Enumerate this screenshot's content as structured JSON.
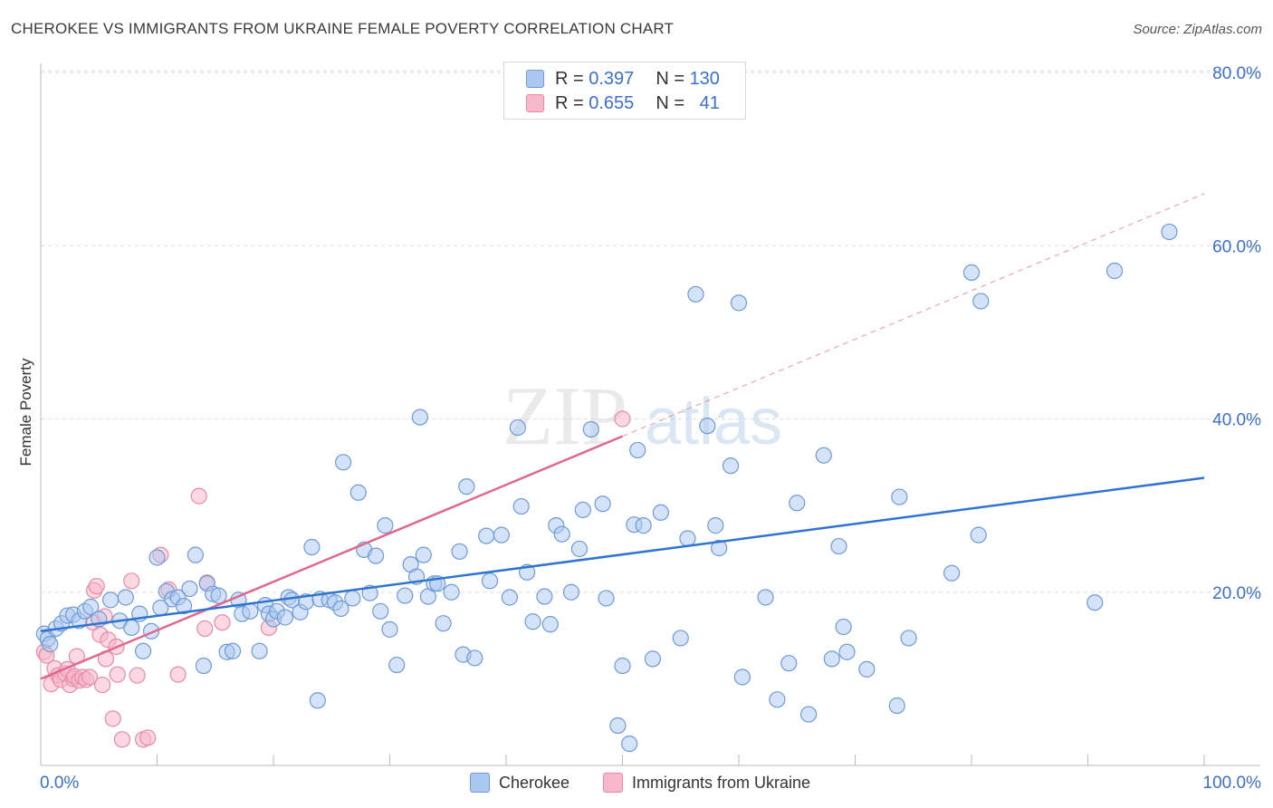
{
  "title": "CHEROKEE VS IMMIGRANTS FROM UKRAINE FEMALE POVERTY CORRELATION CHART",
  "source": "Source: ZipAtlas.com",
  "watermark": {
    "zip": "ZIP",
    "atlas": "atlas"
  },
  "colors": {
    "cherokee_fill": "#aac8f0",
    "cherokee_stroke": "#6f9ad6",
    "cherokee_line": "#2f74d0",
    "ukraine_fill": "#f7b8cb",
    "ukraine_stroke": "#e88aa8",
    "ukraine_line": "#e06890",
    "axis_label": "#3b6fd0",
    "grid": "#dddddd"
  },
  "stats": [
    {
      "r_label": "R =",
      "r_value": "0.397",
      "n_label": "N =",
      "n_value": "130"
    },
    {
      "r_label": "R =",
      "r_value": "0.655",
      "n_label": "N =",
      "n_value": "41"
    }
  ],
  "legend": [
    "Cherokee",
    "Immigrants from Ukraine"
  ],
  "chart_data": {
    "type": "scatter",
    "title": "CHEROKEE VS IMMIGRANTS FROM UKRAINE FEMALE POVERTY CORRELATION CHART",
    "xlabel": "",
    "ylabel": "Female Poverty",
    "xlim": [
      0,
      100
    ],
    "ylim": [
      0,
      80
    ],
    "x_tick_labels": [
      "0.0%",
      "100.0%"
    ],
    "y_ticks": [
      20,
      40,
      60,
      80
    ],
    "y_tick_labels": [
      "20.0%",
      "40.0%",
      "60.0%",
      "80.0%"
    ],
    "grid": true,
    "series": [
      {
        "name": "Cherokee",
        "r": 0.397,
        "n": 130,
        "trend": {
          "x": [
            0,
            100
          ],
          "y": [
            15.5,
            33.2
          ]
        },
        "points": [
          [
            0.3,
            15.2
          ],
          [
            0.6,
            14.6
          ],
          [
            0.8,
            14.0
          ],
          [
            1.3,
            15.8
          ],
          [
            1.8,
            16.4
          ],
          [
            2.3,
            17.3
          ],
          [
            2.8,
            17.4
          ],
          [
            3.3,
            16.7
          ],
          [
            3.8,
            17.8
          ],
          [
            4.3,
            18.3
          ],
          [
            5.0,
            16.9
          ],
          [
            6.0,
            19.1
          ],
          [
            6.8,
            16.7
          ],
          [
            7.3,
            19.4
          ],
          [
            7.8,
            15.9
          ],
          [
            8.5,
            17.5
          ],
          [
            8.8,
            13.2
          ],
          [
            9.5,
            15.5
          ],
          [
            10.0,
            24.0
          ],
          [
            10.3,
            18.2
          ],
          [
            10.8,
            20.1
          ],
          [
            11.3,
            19.2
          ],
          [
            11.8,
            19.4
          ],
          [
            12.3,
            18.4
          ],
          [
            12.8,
            20.4
          ],
          [
            13.3,
            24.3
          ],
          [
            14.0,
            11.5
          ],
          [
            14.3,
            21.0
          ],
          [
            14.8,
            19.8
          ],
          [
            15.3,
            19.6
          ],
          [
            16.0,
            13.1
          ],
          [
            16.5,
            13.2
          ],
          [
            17.0,
            19.1
          ],
          [
            17.3,
            17.5
          ],
          [
            18.0,
            17.8
          ],
          [
            18.8,
            13.2
          ],
          [
            19.3,
            18.5
          ],
          [
            19.6,
            17.5
          ],
          [
            20.0,
            16.9
          ],
          [
            20.3,
            17.8
          ],
          [
            21.0,
            17.1
          ],
          [
            21.3,
            19.4
          ],
          [
            21.6,
            19.1
          ],
          [
            22.3,
            17.7
          ],
          [
            22.8,
            18.9
          ],
          [
            23.3,
            25.2
          ],
          [
            23.8,
            7.5
          ],
          [
            24.0,
            19.2
          ],
          [
            24.8,
            19.1
          ],
          [
            25.3,
            18.8
          ],
          [
            25.8,
            18.1
          ],
          [
            26.0,
            35.0
          ],
          [
            26.8,
            19.3
          ],
          [
            27.3,
            31.5
          ],
          [
            27.8,
            24.9
          ],
          [
            28.3,
            19.9
          ],
          [
            28.8,
            24.2
          ],
          [
            29.2,
            17.8
          ],
          [
            29.6,
            27.7
          ],
          [
            30.0,
            15.7
          ],
          [
            30.6,
            11.6
          ],
          [
            31.3,
            19.6
          ],
          [
            31.8,
            23.2
          ],
          [
            32.3,
            21.8
          ],
          [
            32.6,
            40.2
          ],
          [
            32.9,
            24.3
          ],
          [
            33.3,
            19.5
          ],
          [
            33.8,
            21.0
          ],
          [
            34.1,
            21.0
          ],
          [
            34.6,
            16.4
          ],
          [
            35.3,
            20.0
          ],
          [
            36.0,
            24.7
          ],
          [
            36.3,
            12.8
          ],
          [
            36.6,
            32.2
          ],
          [
            37.3,
            12.4
          ],
          [
            38.3,
            26.5
          ],
          [
            38.6,
            21.3
          ],
          [
            39.6,
            26.6
          ],
          [
            40.3,
            19.4
          ],
          [
            41.0,
            39.0
          ],
          [
            41.3,
            29.9
          ],
          [
            41.8,
            22.3
          ],
          [
            42.3,
            16.6
          ],
          [
            43.3,
            19.5
          ],
          [
            43.8,
            16.3
          ],
          [
            44.3,
            27.7
          ],
          [
            44.8,
            26.7
          ],
          [
            45.6,
            20.0
          ],
          [
            46.3,
            25.0
          ],
          [
            46.6,
            29.5
          ],
          [
            47.3,
            38.8
          ],
          [
            48.3,
            30.2
          ],
          [
            48.6,
            19.3
          ],
          [
            49.6,
            4.6
          ],
          [
            50.0,
            11.5
          ],
          [
            50.6,
            2.5
          ],
          [
            51.0,
            27.8
          ],
          [
            51.3,
            36.4
          ],
          [
            51.8,
            27.7
          ],
          [
            52.6,
            12.3
          ],
          [
            53.3,
            29.2
          ],
          [
            55.0,
            14.7
          ],
          [
            55.6,
            26.2
          ],
          [
            56.3,
            54.4
          ],
          [
            57.3,
            39.2
          ],
          [
            58.0,
            27.7
          ],
          [
            58.3,
            25.1
          ],
          [
            59.3,
            34.6
          ],
          [
            60.0,
            53.4
          ],
          [
            60.3,
            10.2
          ],
          [
            62.3,
            19.4
          ],
          [
            63.3,
            7.6
          ],
          [
            64.3,
            11.8
          ],
          [
            65.0,
            30.3
          ],
          [
            66.0,
            5.9
          ],
          [
            67.3,
            35.8
          ],
          [
            68.0,
            12.3
          ],
          [
            68.6,
            25.3
          ],
          [
            69.0,
            16.0
          ],
          [
            69.3,
            13.1
          ],
          [
            71.0,
            11.1
          ],
          [
            73.6,
            6.9
          ],
          [
            73.8,
            31.0
          ],
          [
            74.6,
            14.7
          ],
          [
            78.3,
            22.2
          ],
          [
            80.0,
            56.9
          ],
          [
            80.6,
            26.6
          ],
          [
            80.8,
            53.6
          ],
          [
            90.6,
            18.8
          ],
          [
            92.3,
            57.1
          ],
          [
            97.0,
            61.6
          ]
        ]
      },
      {
        "name": "Immigrants from Ukraine",
        "r": 0.655,
        "n": 41,
        "trend": {
          "x": [
            0,
            50
          ],
          "y": [
            10.0,
            38.0
          ]
        },
        "trend_dashed": {
          "x": [
            50,
            100
          ],
          "y": [
            38.0,
            66.0
          ]
        },
        "points": [
          [
            0.3,
            13.1
          ],
          [
            0.5,
            12.7
          ],
          [
            0.9,
            9.4
          ],
          [
            1.2,
            11.2
          ],
          [
            1.5,
            10.4
          ],
          [
            1.7,
            9.9
          ],
          [
            2.1,
            10.6
          ],
          [
            2.3,
            11.1
          ],
          [
            2.5,
            9.3
          ],
          [
            2.8,
            10.0
          ],
          [
            2.9,
            10.3
          ],
          [
            3.1,
            12.6
          ],
          [
            3.3,
            9.8
          ],
          [
            3.6,
            10.2
          ],
          [
            3.9,
            9.9
          ],
          [
            4.2,
            10.2
          ],
          [
            4.5,
            16.5
          ],
          [
            4.6,
            20.2
          ],
          [
            4.8,
            20.7
          ],
          [
            5.1,
            15.1
          ],
          [
            5.3,
            9.3
          ],
          [
            5.5,
            17.2
          ],
          [
            5.6,
            12.3
          ],
          [
            5.8,
            14.5
          ],
          [
            6.2,
            5.4
          ],
          [
            6.5,
            13.7
          ],
          [
            6.6,
            10.5
          ],
          [
            7.0,
            3.0
          ],
          [
            7.8,
            21.3
          ],
          [
            8.3,
            10.4
          ],
          [
            8.8,
            3.0
          ],
          [
            9.2,
            3.2
          ],
          [
            10.3,
            24.3
          ],
          [
            11.0,
            20.3
          ],
          [
            11.8,
            10.5
          ],
          [
            13.6,
            31.1
          ],
          [
            14.1,
            15.8
          ],
          [
            14.3,
            21.1
          ],
          [
            15.6,
            16.5
          ],
          [
            19.6,
            15.9
          ],
          [
            50.0,
            40.0
          ]
        ]
      }
    ]
  }
}
